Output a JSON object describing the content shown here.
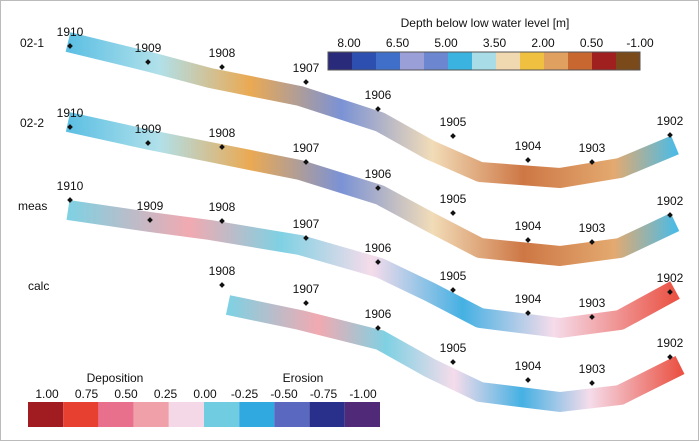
{
  "depth_legend": {
    "title": "Depth below low water level [m]",
    "labels": [
      "8.00",
      "6.50",
      "5.00",
      "3.50",
      "2.00",
      "0.50",
      "-1.00"
    ],
    "colors": [
      "#2a2a7a",
      "#2d4fb0",
      "#3f6fc8",
      "#9a9fd8",
      "#6c86d0",
      "#3bb3e0",
      "#a8dde8",
      "#f0d8b0",
      "#f0c040",
      "#e0a060",
      "#c86830",
      "#a02020",
      "#7a4a1a"
    ]
  },
  "change_legend": {
    "deposition": "Deposition",
    "erosion": "Erosion",
    "labels": [
      "1.00",
      "0.75",
      "0.50",
      "0.25",
      "0.00",
      "-0.25",
      "-0.50",
      "-0.75",
      "-1.00"
    ],
    "colors": [
      "#a01c20",
      "#e84030",
      "#e8708c",
      "#f0a0a8",
      "#f4d8e8",
      "#70cce0",
      "#30a8e0",
      "#5a68c0",
      "#28308c",
      "#502a78"
    ]
  },
  "panels": [
    {
      "label": "02-1",
      "markers": [
        "1910",
        "1909",
        "1908",
        "1907",
        "1906",
        "1905",
        "1904",
        "1903",
        "1902"
      ]
    },
    {
      "label": "02-2",
      "markers": [
        "1910",
        "1909",
        "1908",
        "1907",
        "1906",
        "1905",
        "1904",
        "1903",
        "1902"
      ]
    },
    {
      "label": "meas",
      "markers": [
        "1910",
        "1909",
        "1908",
        "1907",
        "1906",
        "1905",
        "1904",
        "1903",
        "1902"
      ]
    },
    {
      "label": "calc",
      "markers": [
        "1908",
        "1907",
        "1906",
        "1905",
        "1904",
        "1903",
        "1902"
      ]
    }
  ]
}
